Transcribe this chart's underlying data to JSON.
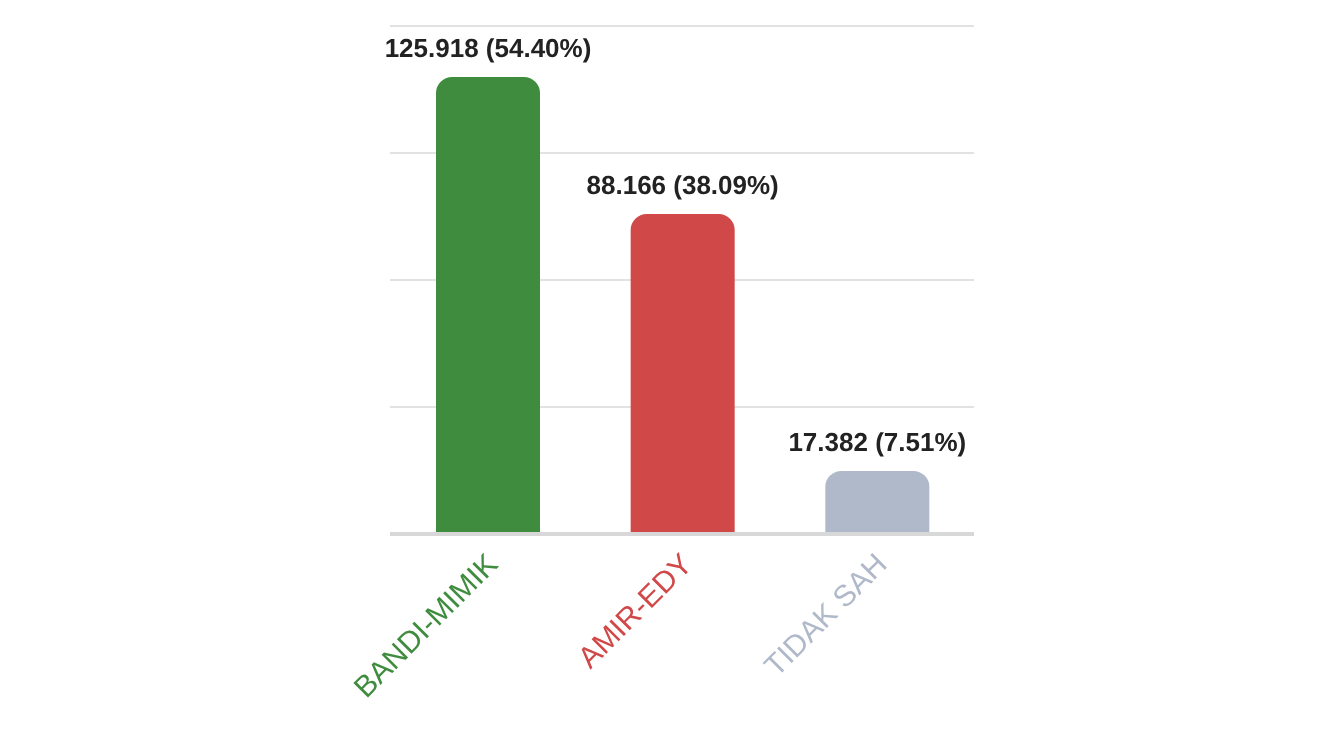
{
  "chart_data": {
    "type": "bar",
    "categories": [
      "BANDI-MIMIK",
      "AMIR-EDY",
      "TIDAK SAH"
    ],
    "values": [
      125.918,
      88.166,
      17.382
    ],
    "colors": [
      "#3f8c3f",
      "#d04848",
      "#b0b9c9"
    ],
    "value_labels": [
      "125.918 (54.40%)",
      "88.166 (38.09%)",
      "17.382 (7.51%)"
    ],
    "ylim": [
      0,
      140
    ],
    "grid": "y",
    "tick_labels": "x",
    "legend": false
  }
}
